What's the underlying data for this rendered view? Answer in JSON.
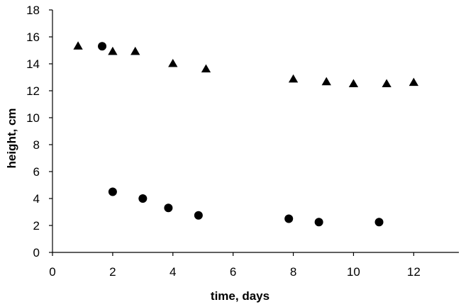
{
  "chart_data": {
    "type": "scatter",
    "title": "",
    "xlabel": "time, days",
    "ylabel": "height, cm",
    "xlim": [
      0,
      13.5
    ],
    "ylim": [
      0,
      18
    ],
    "xticks": [
      0,
      2,
      4,
      6,
      8,
      10,
      12
    ],
    "yticks": [
      0,
      2,
      4,
      6,
      8,
      10,
      12,
      14,
      16,
      18
    ],
    "grid": false,
    "legend": "none",
    "series": [
      {
        "marker": "triangle",
        "color": "#000000",
        "points": [
          {
            "x": 0.85,
            "y": 15.3
          },
          {
            "x": 2.0,
            "y": 14.9
          },
          {
            "x": 2.75,
            "y": 14.9
          },
          {
            "x": 4.0,
            "y": 14.0
          },
          {
            "x": 5.1,
            "y": 13.6
          },
          {
            "x": 8.0,
            "y": 12.85
          },
          {
            "x": 9.1,
            "y": 12.65
          },
          {
            "x": 10.0,
            "y": 12.5
          },
          {
            "x": 11.1,
            "y": 12.5
          },
          {
            "x": 12.0,
            "y": 12.6
          }
        ]
      },
      {
        "marker": "circle",
        "color": "#000000",
        "points": [
          {
            "x": 1.65,
            "y": 15.3
          },
          {
            "x": 2.0,
            "y": 4.5
          },
          {
            "x": 3.0,
            "y": 4.0
          },
          {
            "x": 3.85,
            "y": 3.3
          },
          {
            "x": 4.85,
            "y": 2.75
          },
          {
            "x": 7.85,
            "y": 2.5
          },
          {
            "x": 8.85,
            "y": 2.25
          },
          {
            "x": 10.85,
            "y": 2.25
          }
        ]
      }
    ]
  }
}
